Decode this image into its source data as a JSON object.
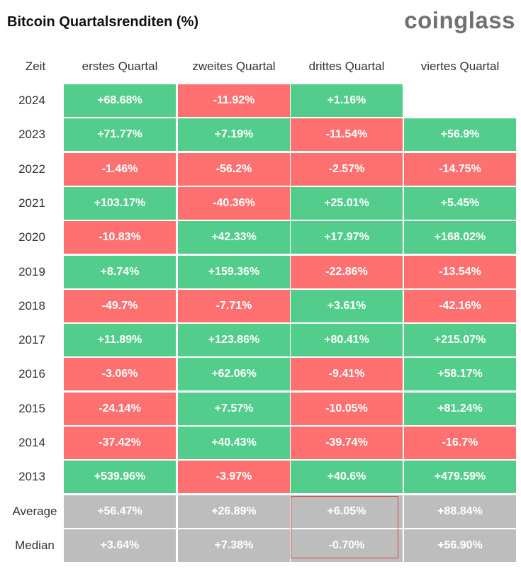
{
  "title": "Bitcoin Quartalsrenditen (%)",
  "brand": "coinglass",
  "colors": {
    "positive": "#52cd8b",
    "negative": "#ff7070",
    "summary": "#bdbdbd",
    "highlight": "#d64545"
  },
  "chart_data": {
    "type": "table",
    "title": "Bitcoin Quartalsrenditen (%)",
    "columns": [
      "Zeit",
      "erstes Quartal",
      "zweites Quartal",
      "drittes Quartal",
      "viertes Quartal"
    ],
    "rows": [
      {
        "label": "2024",
        "values": [
          "+68.68%",
          "-11.92%",
          "+1.16%",
          null
        ]
      },
      {
        "label": "2023",
        "values": [
          "+71.77%",
          "+7.19%",
          "-11.54%",
          "+56.9%"
        ]
      },
      {
        "label": "2022",
        "values": [
          "-1.46%",
          "-56.2%",
          "-2.57%",
          "-14.75%"
        ]
      },
      {
        "label": "2021",
        "values": [
          "+103.17%",
          "-40.36%",
          "+25.01%",
          "+5.45%"
        ]
      },
      {
        "label": "2020",
        "values": [
          "-10.83%",
          "+42.33%",
          "+17.97%",
          "+168.02%"
        ]
      },
      {
        "label": "2019",
        "values": [
          "+8.74%",
          "+159.36%",
          "-22.86%",
          "-13.54%"
        ]
      },
      {
        "label": "2018",
        "values": [
          "-49.7%",
          "-7.71%",
          "+3.61%",
          "-42.16%"
        ]
      },
      {
        "label": "2017",
        "values": [
          "+11.89%",
          "+123.86%",
          "+80.41%",
          "+215.07%"
        ]
      },
      {
        "label": "2016",
        "values": [
          "-3.06%",
          "+62.06%",
          "-9.41%",
          "+58.17%"
        ]
      },
      {
        "label": "2015",
        "values": [
          "-24.14%",
          "+7.57%",
          "-10.05%",
          "+81.24%"
        ]
      },
      {
        "label": "2014",
        "values": [
          "-37.42%",
          "+40.43%",
          "-39.74%",
          "-16.7%"
        ]
      },
      {
        "label": "2013",
        "values": [
          "+539.96%",
          "-3.97%",
          "+40.6%",
          "+479.59%"
        ]
      }
    ],
    "summary": [
      {
        "label": "Average",
        "values": [
          "+56.47%",
          "+26.89%",
          "+6.05%",
          "+88.84%"
        ]
      },
      {
        "label": "Median",
        "values": [
          "+3.64%",
          "+7.38%",
          "-0.70%",
          "+56.90%"
        ]
      }
    ],
    "highlighted_column": "drittes Quartal",
    "highlighted_rows": [
      "Average",
      "Median"
    ]
  }
}
